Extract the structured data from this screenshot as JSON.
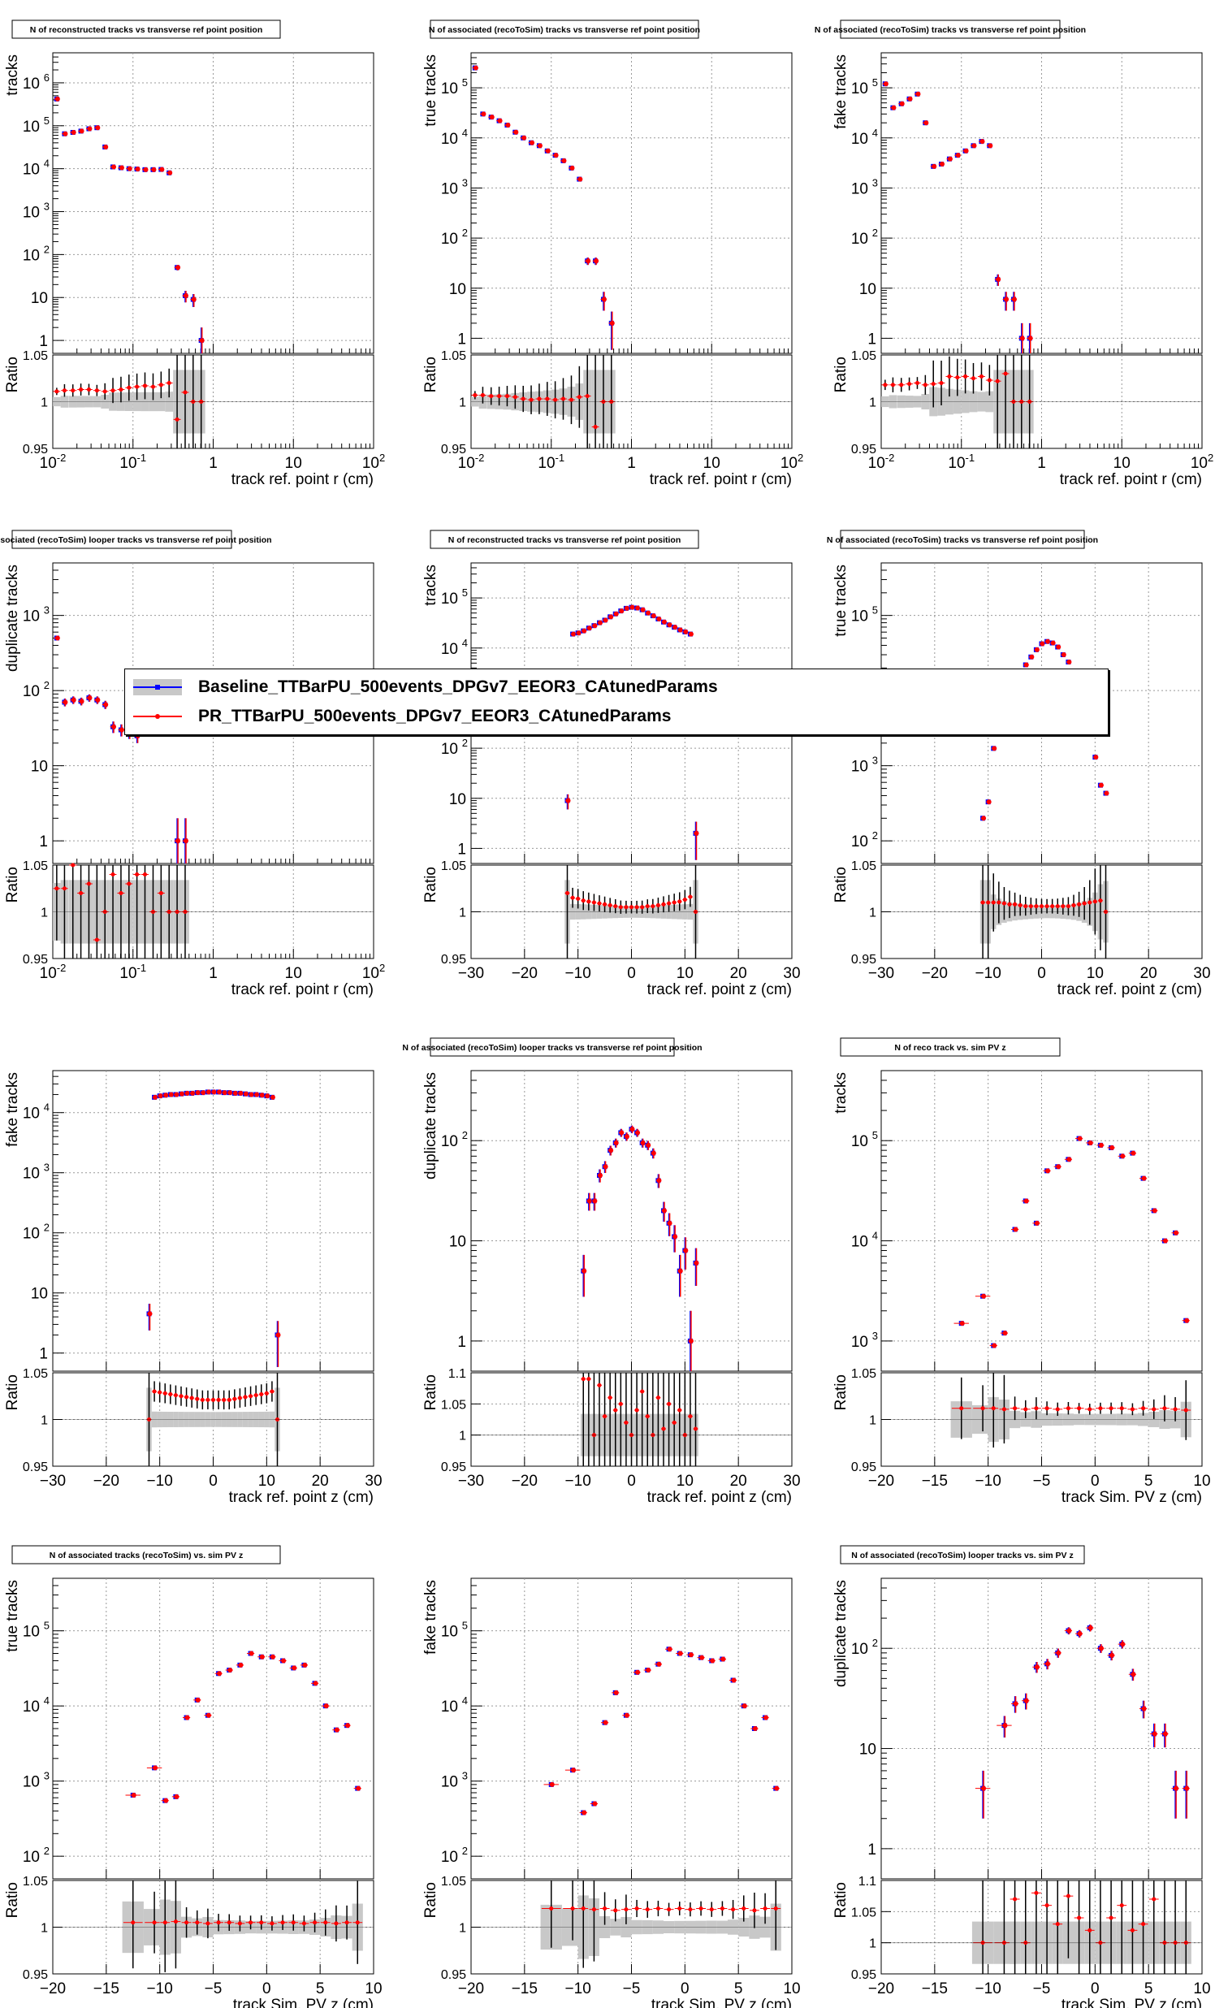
{
  "legend": {
    "entries": [
      {
        "label": "Baseline_TTBarPU_500events_DPGv7_EEOR3_CAtunedParams",
        "color": "#0000ff",
        "band": true
      },
      {
        "label": "PR_TTBarPU_500events_DPGv7_EEOR3_CAtunedParams",
        "color": "#ff0000",
        "band": false
      }
    ]
  },
  "colors": {
    "baseline": "#0000ff",
    "pr": "#ff0000",
    "band": "#c8c8c8",
    "grid": "#999999"
  },
  "chart_data": [
    {
      "type": "scatter",
      "title": "N of reconstructed tracks vs transverse ref point position",
      "ylabel": "tracks",
      "xlabel": "track ref. point r (cm)",
      "ratio_label": "Ratio",
      "xscale": "log",
      "xlim": [
        0.01,
        100
      ],
      "yscale": "log",
      "ylim": [
        0.5,
        5000000
      ],
      "ratio_ylim": [
        0.95,
        1.05
      ],
      "ratio_ticks": [
        "0.95",
        "1",
        "1.05"
      ],
      "x": [
        0.0112,
        0.014,
        0.0178,
        0.0224,
        0.0282,
        0.0355,
        0.0447,
        0.0562,
        0.0708,
        0.0891,
        0.112,
        0.141,
        0.178,
        0.224,
        0.282,
        0.355,
        0.447,
        0.562,
        0.708
      ],
      "values": [
        420000,
        65000,
        70000,
        75000,
        85000,
        90000,
        32000,
        11000,
        10500,
        10000,
        9800,
        9500,
        9500,
        9600,
        8000,
        50,
        11,
        9,
        1
      ],
      "ratio": [
        1.011,
        1.012,
        1.012,
        1.013,
        1.013,
        1.012,
        1.011,
        1.012,
        1.013,
        1.015,
        1.016,
        1.017,
        1.016,
        1.018,
        1.02,
        0.981,
        1.01,
        1.0,
        1.0
      ]
    },
    {
      "type": "scatter",
      "title": "N of associated (recoToSim) tracks vs transverse ref point position",
      "ylabel": "true tracks",
      "xlabel": "track ref. point r (cm)",
      "ratio_label": "Ratio",
      "xscale": "log",
      "xlim": [
        0.01,
        100
      ],
      "yscale": "log",
      "ylim": [
        0.5,
        500000
      ],
      "ratio_ylim": [
        0.95,
        1.05
      ],
      "ratio_ticks": [
        "0.95",
        "1",
        "1.05"
      ],
      "x": [
        0.0112,
        0.014,
        0.0178,
        0.0224,
        0.0282,
        0.0355,
        0.0447,
        0.0562,
        0.0708,
        0.0891,
        0.112,
        0.141,
        0.178,
        0.224,
        0.282,
        0.355,
        0.447,
        0.562
      ],
      "values": [
        250000,
        30000,
        26000,
        22000,
        18000,
        13000,
        10000,
        8000,
        7000,
        5500,
        4500,
        3500,
        2500,
        1500,
        35,
        35,
        6,
        2
      ],
      "ratio": [
        1.007,
        1.007,
        1.006,
        1.006,
        1.006,
        1.005,
        1.003,
        1.002,
        1.003,
        1.003,
        1.002,
        1.003,
        1.002,
        1.005,
        1.006,
        0.973,
        1.0,
        1.0
      ]
    },
    {
      "type": "scatter",
      "title": "N of associated (recoToSim) tracks vs transverse ref point position",
      "ylabel": "fake tracks",
      "xlabel": "track ref. point r (cm)",
      "ratio_label": "Ratio",
      "xscale": "log",
      "xlim": [
        0.01,
        100
      ],
      "yscale": "log",
      "ylim": [
        0.5,
        500000
      ],
      "ratio_ylim": [
        0.95,
        1.05
      ],
      "ratio_ticks": [
        "0.95",
        "1",
        "1.05"
      ],
      "x": [
        0.0112,
        0.014,
        0.0178,
        0.0224,
        0.0282,
        0.0355,
        0.0447,
        0.0562,
        0.0708,
        0.0891,
        0.112,
        0.141,
        0.178,
        0.224,
        0.282,
        0.355,
        0.447,
        0.562,
        0.708
      ],
      "values": [
        120000,
        40000,
        48000,
        60000,
        75000,
        20000,
        2700,
        3000,
        3800,
        4500,
        5500,
        7000,
        8500,
        7000,
        15,
        6,
        6,
        1,
        1
      ],
      "ratio": [
        1.018,
        1.018,
        1.018,
        1.019,
        1.02,
        1.018,
        1.019,
        1.02,
        1.027,
        1.026,
        1.027,
        1.025,
        1.027,
        1.023,
        1.022,
        1.03,
        1.0,
        1.0,
        1.0
      ]
    },
    {
      "type": "scatter",
      "title": "N of associated (recoToSim) looper tracks vs transverse ref point position",
      "ylabel": "duplicate tracks",
      "xlabel": "track ref. point r (cm)",
      "ratio_label": "Ratio",
      "xscale": "log",
      "xlim": [
        0.01,
        100
      ],
      "yscale": "log",
      "ylim": [
        0.5,
        5000
      ],
      "ratio_ylim": [
        0.95,
        1.05
      ],
      "ratio_ticks": [
        "0.95",
        "1",
        "1.05"
      ],
      "x": [
        0.0112,
        0.014,
        0.0178,
        0.0224,
        0.0282,
        0.0355,
        0.0447,
        0.0562,
        0.0708,
        0.0891,
        0.112,
        0.141,
        0.178,
        0.224,
        0.282,
        0.355,
        0.447
      ],
      "values": [
        500,
        70,
        75,
        72,
        80,
        75,
        65,
        33,
        30,
        28,
        25,
        30,
        30,
        30,
        30,
        1,
        1
      ],
      "ratio": [
        1.025,
        1.025,
        1.05,
        1.02,
        1.03,
        0.97,
        1.0,
        1.04,
        1.02,
        1.03,
        1.04,
        1.04,
        1.0,
        1.02,
        1.0,
        1.0,
        1.0
      ]
    },
    {
      "type": "scatter",
      "title": "N of reconstructed tracks vs transverse ref point position",
      "ylabel": "tracks",
      "xlabel": "track ref. point z (cm)",
      "ratio_label": "Ratio",
      "xscale": "linear",
      "xlim": [
        -30,
        30
      ],
      "yscale": "log",
      "ylim": [
        0.5,
        500000
      ],
      "ratio_ylim": [
        0.95,
        1.05
      ],
      "ratio_ticks": [
        "0.95",
        "1",
        "1.05"
      ],
      "x": [
        -12,
        -11,
        -10,
        -9,
        -8,
        -7,
        -6,
        -5,
        -4,
        -3,
        -2,
        -1,
        0,
        1,
        2,
        3,
        4,
        5,
        6,
        7,
        8,
        9,
        10,
        11,
        12
      ],
      "values": [
        9,
        19000,
        20000,
        22000,
        25000,
        28000,
        32000,
        36000,
        42000,
        48000,
        55000,
        62000,
        65000,
        63000,
        58000,
        50000,
        44000,
        38000,
        33000,
        29000,
        26000,
        23000,
        21000,
        19000,
        2
      ],
      "ratio": [
        1.02,
        1.015,
        1.014,
        1.012,
        1.011,
        1.01,
        1.009,
        1.008,
        1.007,
        1.006,
        1.005,
        1.005,
        1.005,
        1.005,
        1.005,
        1.006,
        1.006,
        1.007,
        1.008,
        1.009,
        1.01,
        1.011,
        1.013,
        1.016,
        1.0
      ]
    },
    {
      "type": "scatter",
      "title": "N of associated (recoToSim) tracks vs transverse ref point position",
      "ylabel": "true tracks",
      "xlabel": "track ref. point z (cm)",
      "ratio_label": "Ratio",
      "xscale": "linear",
      "xlim": [
        -30,
        30
      ],
      "yscale": "log",
      "ylim": [
        50,
        500000
      ],
      "ratio_ylim": [
        0.95,
        1.05
      ],
      "ratio_ticks": [
        "0.95",
        "1",
        "1.05"
      ],
      "x": [
        -11,
        -10,
        -9,
        -8,
        -7,
        -6,
        -5,
        -4,
        -3,
        -2,
        -1,
        0,
        1,
        2,
        3,
        4,
        5,
        6,
        7,
        8,
        9,
        10,
        11,
        12
      ],
      "values": [
        200,
        330,
        1700,
        3500,
        6000,
        9000,
        13000,
        17000,
        22000,
        28000,
        35000,
        42000,
        45000,
        43000,
        38000,
        30000,
        24000,
        17000,
        11000,
        6000,
        3000,
        1300,
        550,
        430
      ],
      "ratio": [
        1.01,
        1.01,
        1.01,
        1.01,
        1.009,
        1.008,
        1.008,
        1.007,
        1.006,
        1.006,
        1.006,
        1.006,
        1.006,
        1.006,
        1.006,
        1.006,
        1.006,
        1.007,
        1.008,
        1.009,
        1.01,
        1.011,
        1.012,
        1.0
      ]
    },
    {
      "type": "scatter",
      "title": "",
      "ylabel": "fake tracks",
      "xlabel": "track ref. point z (cm)",
      "ratio_label": "Ratio",
      "xscale": "linear",
      "xlim": [
        -30,
        30
      ],
      "yscale": "log",
      "ylim": [
        0.5,
        50000
      ],
      "ratio_ylim": [
        0.95,
        1.05
      ],
      "ratio_ticks": [
        "0.95",
        "1",
        "1.05"
      ],
      "x": [
        -12,
        -11,
        -10,
        -9,
        -8,
        -7,
        -6,
        -5,
        -4,
        -3,
        -2,
        -1,
        0,
        1,
        2,
        3,
        4,
        5,
        6,
        7,
        8,
        9,
        10,
        11,
        12
      ],
      "values": [
        4.5,
        18000,
        19000,
        19500,
        20000,
        20000,
        20500,
        21000,
        21000,
        21500,
        21500,
        22000,
        22000,
        22000,
        21500,
        21500,
        21000,
        21000,
        20500,
        20000,
        20000,
        19500,
        19000,
        18000,
        2
      ],
      "ratio": [
        1.0,
        1.03,
        1.029,
        1.028,
        1.027,
        1.026,
        1.025,
        1.024,
        1.023,
        1.022,
        1.021,
        1.021,
        1.021,
        1.021,
        1.021,
        1.021,
        1.022,
        1.023,
        1.024,
        1.025,
        1.026,
        1.027,
        1.028,
        1.03,
        1.0
      ]
    },
    {
      "type": "scatter",
      "title": "N of associated (recoToSim) looper tracks vs transverse ref point position",
      "ylabel": "duplicate tracks",
      "xlabel": "track ref. point z (cm)",
      "ratio_label": "Ratio",
      "xscale": "linear",
      "xlim": [
        -30,
        30
      ],
      "yscale": "log",
      "ylim": [
        0.5,
        500
      ],
      "ratio_ylim": [
        0.95,
        1.1
      ],
      "ratio_ticks": [
        "0.95",
        "1",
        "1.05",
        "1.1"
      ],
      "x": [
        -9,
        -8,
        -7,
        -6,
        -5,
        -4,
        -3,
        -2,
        -1,
        0,
        1,
        2,
        3,
        4,
        5,
        6,
        7,
        8,
        9,
        10,
        11,
        12
      ],
      "values": [
        5,
        25,
        25,
        45,
        55,
        80,
        95,
        120,
        110,
        130,
        120,
        95,
        90,
        75,
        40,
        20,
        15,
        11,
        5,
        8,
        1,
        6
      ],
      "ratio": [
        1.09,
        1.09,
        1.0,
        1.08,
        1.03,
        1.06,
        1.04,
        1.05,
        1.02,
        1.0,
        1.04,
        1.07,
        1.03,
        1.0,
        1.06,
        1.01,
        1.05,
        1.02,
        1.04,
        1.0,
        1.03,
        1.01
      ]
    },
    {
      "type": "scatter",
      "title": "N of reco track vs. sim PV z",
      "ylabel": "tracks",
      "xlabel": "track Sim. PV z (cm)",
      "ratio_label": "Ratio",
      "xscale": "linear",
      "xlim": [
        -20,
        10
      ],
      "yscale": "log",
      "ylim": [
        500,
        500000
      ],
      "ratio_ylim": [
        0.95,
        1.05
      ],
      "ratio_ticks": [
        "0.95",
        "1",
        "1.05"
      ],
      "x": [
        -12.5,
        -10.5,
        -9.5,
        -8.5,
        -7.5,
        -6.5,
        -5.5,
        -4.5,
        -3.5,
        -2.5,
        -1.5,
        -0.5,
        0.5,
        1.5,
        2.5,
        3.5,
        4.5,
        5.5,
        6.5,
        7.5,
        8.5
      ],
      "values": [
        1500,
        2800,
        900,
        1200,
        13000,
        25000,
        15000,
        50000,
        55000,
        65000,
        105000,
        95000,
        90000,
        85000,
        70000,
        75000,
        42000,
        20000,
        10000,
        12000,
        1600
      ],
      "ratio": [
        1.012,
        1.012,
        1.012,
        1.011,
        1.012,
        1.011,
        1.012,
        1.012,
        1.011,
        1.012,
        1.012,
        1.011,
        1.012,
        1.012,
        1.012,
        1.011,
        1.012,
        1.011,
        1.012,
        1.011,
        1.01
      ]
    },
    {
      "type": "scatter",
      "title": "N of associated tracks (recoToSim) vs. sim PV z",
      "ylabel": "true tracks",
      "xlabel": "track Sim. PV z (cm)",
      "ratio_label": "Ratio",
      "xscale": "linear",
      "xlim": [
        -20,
        10
      ],
      "yscale": "log",
      "ylim": [
        50,
        500000
      ],
      "ratio_ylim": [
        0.95,
        1.05
      ],
      "ratio_ticks": [
        "0.95",
        "1",
        "1.05"
      ],
      "x": [
        -12.5,
        -10.5,
        -9.5,
        -8.5,
        -7.5,
        -6.5,
        -5.5,
        -4.5,
        -3.5,
        -2.5,
        -1.5,
        -0.5,
        0.5,
        1.5,
        2.5,
        3.5,
        4.5,
        5.5,
        6.5,
        7.5,
        8.5
      ],
      "values": [
        650,
        1500,
        550,
        620,
        7000,
        12000,
        7500,
        27000,
        30000,
        35000,
        50000,
        45000,
        45000,
        40000,
        32000,
        35000,
        20000,
        10000,
        4800,
        5500,
        800
      ],
      "ratio": [
        1.005,
        1.005,
        1.005,
        1.006,
        1.005,
        1.005,
        1.004,
        1.005,
        1.005,
        1.004,
        1.005,
        1.005,
        1.004,
        1.005,
        1.005,
        1.004,
        1.005,
        1.005,
        1.004,
        1.005,
        1.005
      ]
    },
    {
      "type": "scatter",
      "title": "",
      "ylabel": "fake tracks",
      "xlabel": "track Sim. PV z (cm)",
      "ratio_label": "Ratio",
      "xscale": "linear",
      "xlim": [
        -20,
        10
      ],
      "yscale": "log",
      "ylim": [
        50,
        500000
      ],
      "ratio_ylim": [
        0.95,
        1.05
      ],
      "ratio_ticks": [
        "0.95",
        "1",
        "1.05"
      ],
      "x": [
        -12.5,
        -10.5,
        -9.5,
        -8.5,
        -7.5,
        -6.5,
        -5.5,
        -4.5,
        -3.5,
        -2.5,
        -1.5,
        -0.5,
        0.5,
        1.5,
        2.5,
        3.5,
        4.5,
        5.5,
        6.5,
        7.5,
        8.5
      ],
      "values": [
        900,
        1400,
        380,
        500,
        6000,
        15000,
        7500,
        28000,
        30000,
        36000,
        57000,
        50000,
        48000,
        44000,
        40000,
        42000,
        22000,
        10000,
        5000,
        7000,
        800
      ],
      "ratio": [
        1.02,
        1.02,
        1.02,
        1.019,
        1.02,
        1.018,
        1.019,
        1.02,
        1.019,
        1.02,
        1.019,
        1.02,
        1.019,
        1.02,
        1.019,
        1.02,
        1.019,
        1.02,
        1.018,
        1.02,
        1.02
      ]
    },
    {
      "type": "scatter",
      "title": "N of associated (recoToSim) looper tracks vs. sim PV z",
      "ylabel": "duplicate tracks",
      "xlabel": "track Sim. PV z (cm)",
      "ratio_label": "Ratio",
      "xscale": "linear",
      "xlim": [
        -20,
        10
      ],
      "yscale": "log",
      "ylim": [
        0.5,
        500
      ],
      "ratio_ylim": [
        0.95,
        1.1
      ],
      "ratio_ticks": [
        "0.95",
        "1",
        "1.05",
        "1.1"
      ],
      "x": [
        -10.5,
        -8.5,
        -7.5,
        -6.5,
        -5.5,
        -4.5,
        -3.5,
        -2.5,
        -1.5,
        -0.5,
        0.5,
        1.5,
        2.5,
        3.5,
        4.5,
        5.5,
        6.5,
        7.5,
        8.5
      ],
      "values": [
        4,
        17,
        28,
        30,
        65,
        70,
        90,
        150,
        140,
        160,
        100,
        85,
        110,
        55,
        25,
        14,
        14,
        4,
        4
      ],
      "ratio": [
        1.0,
        1.0,
        1.07,
        1.0,
        1.08,
        1.06,
        1.03,
        1.075,
        1.04,
        1.02,
        1.0,
        1.04,
        1.06,
        1.02,
        1.03,
        1.07,
        1.0,
        1.0,
        1.0
      ]
    }
  ]
}
